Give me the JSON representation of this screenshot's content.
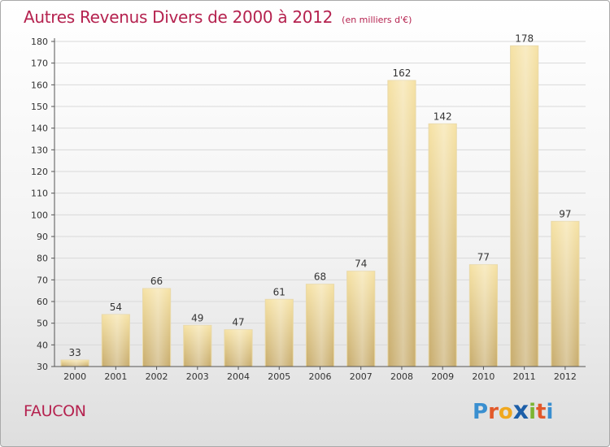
{
  "header": {
    "title": "Autres Revenus Divers de 2000 à 2012",
    "unit": "(en milliers d'€)"
  },
  "commune": "FAUCON",
  "logo": {
    "text": "Proxiti",
    "letters": [
      "P",
      "r",
      "o",
      "x",
      "i",
      "t",
      "i"
    ],
    "colors": [
      "#3a8fd0",
      "#e2592a",
      "#f0a81e",
      "#1c5ea8",
      "#7cb531",
      "#e2592a",
      "#3a8fd0"
    ]
  },
  "colors": {
    "title": "#b5224f",
    "bar": "#e5ca86",
    "grid": "#d9d9d9"
  },
  "chart_data": {
    "type": "bar",
    "title": "Autres Revenus Divers de 2000 à 2012",
    "xlabel": "",
    "ylabel": "",
    "categories": [
      "2000",
      "2001",
      "2002",
      "2003",
      "2004",
      "2005",
      "2006",
      "2007",
      "2008",
      "2009",
      "2010",
      "2011",
      "2012"
    ],
    "values": [
      33,
      54,
      66,
      49,
      47,
      61,
      68,
      74,
      162,
      142,
      77,
      178,
      97
    ],
    "ylim": [
      30,
      180
    ],
    "yticks": [
      30,
      40,
      50,
      60,
      70,
      80,
      90,
      100,
      110,
      120,
      130,
      140,
      150,
      160,
      170,
      180
    ],
    "grid": true,
    "data_labels": true
  }
}
